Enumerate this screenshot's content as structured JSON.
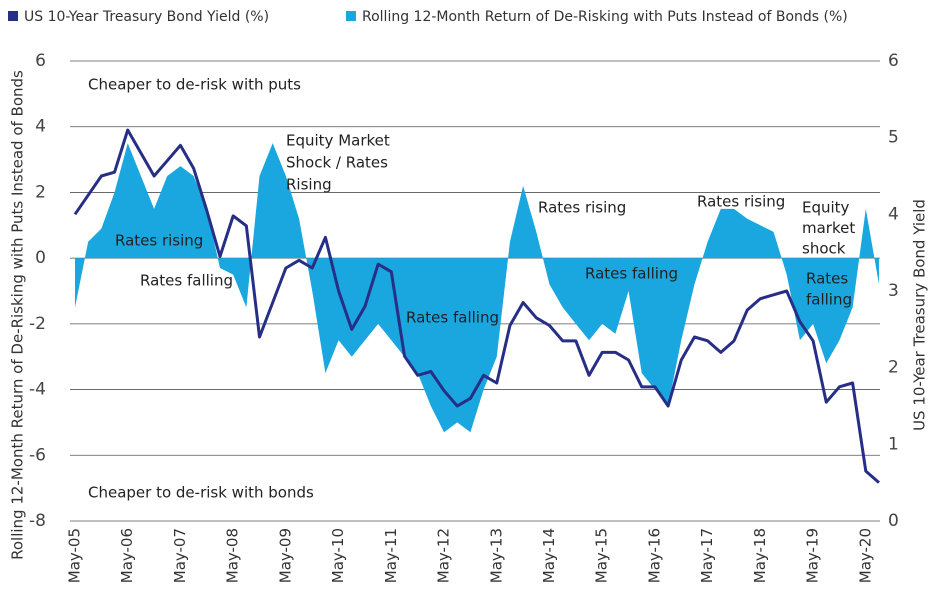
{
  "chart_data": {
    "type": "combo",
    "categories": [
      "May-05",
      null,
      null,
      null,
      "May-06",
      null,
      null,
      null,
      "May-07",
      null,
      null,
      null,
      "May-08",
      null,
      null,
      null,
      "May-09",
      null,
      null,
      null,
      "May-10",
      null,
      null,
      null,
      "May-11",
      null,
      null,
      null,
      "May-12",
      null,
      null,
      null,
      "May-13",
      null,
      null,
      null,
      "May-14",
      null,
      null,
      null,
      "May-15",
      null,
      null,
      null,
      "May-16",
      null,
      null,
      null,
      "May-17",
      null,
      null,
      null,
      "May-18",
      null,
      null,
      null,
      "May-19",
      null,
      null,
      null,
      "May-20",
      null
    ],
    "series": [
      {
        "name": "US 10-Year Treasury Bond Yield (%)",
        "color": "#262e86",
        "axis": "y2",
        "kind": "line",
        "values": [
          4.0,
          4.25,
          4.5,
          4.55,
          5.1,
          4.8,
          4.5,
          4.7,
          4.9,
          4.6,
          4.05,
          3.45,
          3.98,
          3.85,
          2.4,
          2.85,
          3.3,
          3.4,
          3.3,
          3.7,
          3.0,
          2.5,
          2.8,
          3.35,
          3.25,
          2.15,
          1.9,
          1.95,
          1.7,
          1.5,
          1.6,
          1.9,
          1.8,
          2.55,
          2.85,
          2.65,
          2.55,
          2.35,
          2.35,
          1.9,
          2.2,
          2.2,
          2.1,
          1.75,
          1.75,
          1.5,
          2.1,
          2.4,
          2.35,
          2.2,
          2.35,
          2.75,
          2.9,
          2.95,
          3.0,
          2.6,
          2.35,
          1.55,
          1.75,
          1.8,
          0.65,
          0.5
        ]
      },
      {
        "name": "Rolling 12-Month Return of De-Risking with Puts Instead of Bonds (%)",
        "color": "#1aa6de",
        "axis": "y",
        "kind": "area",
        "values": [
          -1.5,
          0.5,
          0.9,
          2.0,
          3.5,
          2.5,
          1.5,
          2.5,
          2.8,
          2.5,
          1.5,
          -0.3,
          -0.5,
          -1.5,
          2.5,
          3.5,
          2.5,
          1.2,
          -1.0,
          -3.5,
          -2.5,
          -3.0,
          -2.5,
          -2.0,
          -2.5,
          -3.0,
          -3.5,
          -4.5,
          -5.3,
          -5.0,
          -5.3,
          -4.0,
          -3.0,
          0.5,
          2.2,
          0.8,
          -0.8,
          -1.5,
          -2.0,
          -2.5,
          -2.0,
          -2.3,
          -1.0,
          -3.5,
          -4.0,
          -4.5,
          -2.5,
          -0.8,
          0.5,
          1.5,
          1.5,
          1.2,
          1.0,
          0.8,
          -0.5,
          -2.5,
          -2.0,
          -3.2,
          -2.5,
          -1.5,
          1.5,
          -0.8
        ]
      }
    ],
    "ylim": [
      -8,
      6
    ],
    "yticks": [
      -8,
      -6,
      -4,
      -2,
      0,
      2,
      4,
      6
    ],
    "y2lim": [
      0,
      6
    ],
    "y2ticks": [
      0,
      1,
      2,
      3,
      4,
      5,
      6
    ],
    "ylabel": "Rolling 12-Month Return of De-Risking with Puts Instead of Bonds",
    "y2label": "US 10-Year Treasury Bond Yield",
    "grid": true,
    "annotations": [
      [
        "Cheaper to de-risk with puts"
      ],
      [
        "Cheaper to de-risk with bonds"
      ],
      [
        "Rates rising"
      ],
      [
        "Rates falling"
      ],
      [
        "Equity Market",
        "Shock / Rates",
        "Rising"
      ],
      [
        "Rates falling"
      ],
      [
        "Rates rising"
      ],
      [
        "Rates falling"
      ],
      [
        "Rates rising"
      ],
      [
        "Equity",
        "market",
        "shock"
      ],
      [
        "Rates",
        "falling"
      ]
    ]
  }
}
